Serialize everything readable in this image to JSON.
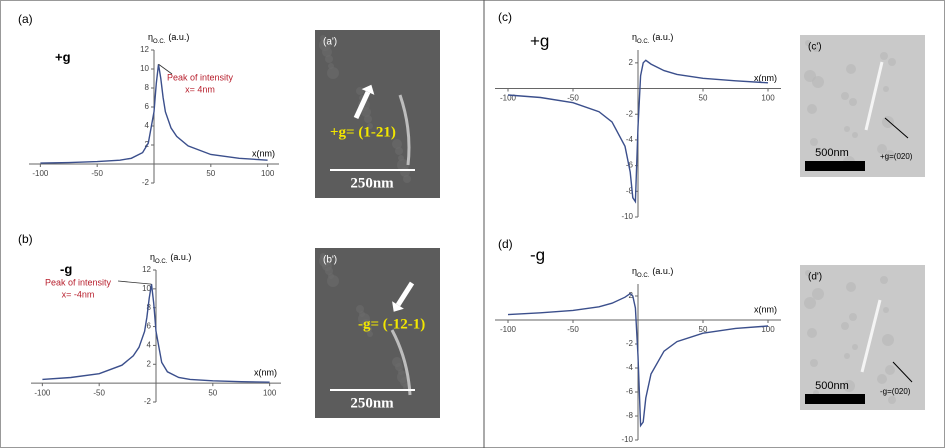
{
  "chart_data": [
    {
      "type": "line",
      "panel": "(a)",
      "label": "+g",
      "x_label": "x(nm)",
      "y_label": {
        "symbol": "η",
        "subscript": "O.C.",
        "unit": "(a.u.)"
      },
      "x": [
        -100,
        -75,
        -50,
        -30,
        -20,
        -10,
        -5,
        0,
        2,
        4,
        6,
        8,
        10,
        15,
        20,
        30,
        50,
        75,
        100
      ],
      "series": [
        {
          "color": "#3b4f8c",
          "values": [
            0.1,
            0.15,
            0.25,
            0.4,
            0.6,
            1.2,
            2.2,
            5.5,
            8.5,
            10.5,
            9,
            7,
            5.5,
            3.8,
            2.9,
            1.9,
            1.0,
            0.6,
            0.4
          ]
        }
      ],
      "xlim": [
        -110,
        110
      ],
      "ylim": [
        -2,
        12
      ],
      "xticks": [
        -100,
        -50,
        50,
        100
      ],
      "yticks": [
        -2,
        2,
        4,
        6,
        8,
        10,
        12
      ],
      "annotation": [
        "Peak of intensity",
        "x= 4nm"
      ],
      "annotation_color": "#b8202e"
    },
    {
      "type": "line",
      "panel": "(b)",
      "label": "-g",
      "x_label": "x(nm)",
      "y_label": {
        "symbol": "η",
        "subscript": "O.C.",
        "unit": "(a.u.)"
      },
      "x": [
        -100,
        -75,
        -50,
        -30,
        -20,
        -15,
        -10,
        -8,
        -6,
        -4,
        -2,
        0,
        5,
        10,
        20,
        30,
        50,
        75,
        100
      ],
      "series": [
        {
          "color": "#3b4f8c",
          "values": [
            0.4,
            0.6,
            1.0,
            1.9,
            2.9,
            3.8,
            5.5,
            7,
            9,
            10.5,
            8.5,
            5.5,
            2.2,
            1.2,
            0.6,
            0.4,
            0.25,
            0.15,
            0.1
          ]
        }
      ],
      "xlim": [
        -110,
        110
      ],
      "ylim": [
        -2,
        12
      ],
      "xticks": [
        -100,
        -50,
        50,
        100
      ],
      "yticks": [
        -2,
        2,
        4,
        6,
        8,
        10,
        12
      ],
      "annotation": [
        "Peak of intensity",
        "x= -4nm"
      ],
      "annotation_color": "#b8202e"
    },
    {
      "type": "line",
      "panel": "(c)",
      "label": "+g",
      "x_label": "x(nm)",
      "y_label": {
        "symbol": "η",
        "subscript": "O.C.",
        "unit": "(a.u.)"
      },
      "x": [
        -100,
        -75,
        -50,
        -30,
        -20,
        -10,
        -6,
        -4,
        -2,
        0,
        2,
        4,
        6,
        10,
        20,
        30,
        50,
        75,
        100
      ],
      "series": [
        {
          "color": "#3b4f8c",
          "values": [
            -0.5,
            -0.7,
            -1.1,
            -1.8,
            -2.6,
            -4.5,
            -6.5,
            -8.5,
            -8.8,
            -3,
            1,
            2,
            2.2,
            1.9,
            1.4,
            1.1,
            0.8,
            0.6,
            0.45
          ]
        }
      ],
      "xlim": [
        -110,
        110
      ],
      "ylim": [
        -10,
        3
      ],
      "xticks": [
        -100,
        -50,
        50,
        100
      ],
      "yticks": [
        -10,
        -8,
        -6,
        -4,
        -2,
        2
      ]
    },
    {
      "type": "line",
      "panel": "(d)",
      "label": "-g",
      "x_label": "x(nm)",
      "y_label": {
        "symbol": "η",
        "subscript": "O.C.",
        "unit": "(a.u.)"
      },
      "x": [
        -100,
        -75,
        -50,
        -30,
        -20,
        -10,
        -6,
        -4,
        -2,
        0,
        2,
        4,
        6,
        10,
        20,
        30,
        50,
        75,
        100
      ],
      "series": [
        {
          "color": "#3b4f8c",
          "values": [
            0.45,
            0.6,
            0.8,
            1.1,
            1.4,
            1.9,
            2.2,
            2,
            1,
            -3,
            -8.8,
            -8.5,
            -6.5,
            -4.5,
            -2.6,
            -1.8,
            -1.1,
            -0.7,
            -0.5
          ]
        }
      ],
      "xlim": [
        -110,
        110
      ],
      "ylim": [
        -10,
        3
      ],
      "xticks": [
        -100,
        -50,
        50,
        100
      ],
      "yticks": [
        -10,
        -8,
        -6,
        -4,
        -2,
        2
      ]
    }
  ],
  "images": [
    {
      "label": "(a')",
      "annotation": "+g= (1-21)",
      "scale_bar": "250nm"
    },
    {
      "label": "(b')",
      "annotation": "-g= (-12-1)",
      "scale_bar": "250nm"
    },
    {
      "label": "(c')",
      "annotation": "+g=(020)",
      "scale_bar": "500nm"
    },
    {
      "label": "(d')",
      "annotation": "-g=(020)",
      "scale_bar": "500nm"
    }
  ]
}
